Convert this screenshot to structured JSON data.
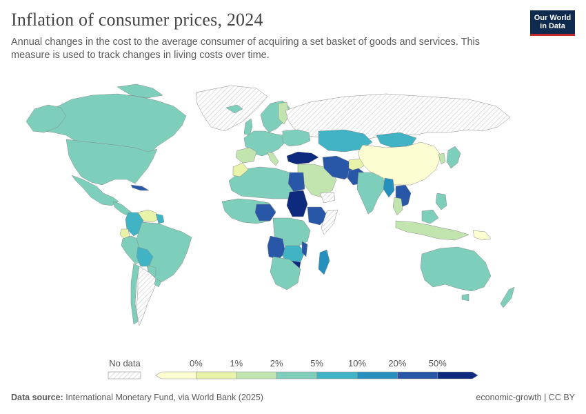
{
  "header": {
    "title": "Inflation of consumer prices, 2024",
    "subtitle": "Annual changes in the cost to the average consumer of acquiring a set basket of goods and services. This measure is used to track changes in living costs over time."
  },
  "logo": {
    "line1": "Our World",
    "line2": "in Data"
  },
  "legend": {
    "no_data_label": "No data",
    "bins": [
      {
        "color": "#fdfdd2"
      },
      {
        "color": "#e8f2a8"
      },
      {
        "color": "#c2e5b0"
      },
      {
        "color": "#7dcfbb"
      },
      {
        "color": "#40b4c4"
      },
      {
        "color": "#2590bd"
      },
      {
        "color": "#2757a6"
      },
      {
        "color": "#0d2a7e"
      }
    ],
    "ticks": [
      "0%",
      "1%",
      "2%",
      "5%",
      "10%",
      "20%",
      "50%"
    ]
  },
  "map": {
    "land_default_color": "#7dcfbb",
    "no_data_hatch": "#cfcfcf",
    "border_color": "#8a8a8a"
  },
  "footer": {
    "source_label": "Data source:",
    "source_text": "International Monetary Fund, via World Bank (2025)",
    "right_text": "economic-growth | CC BY"
  }
}
